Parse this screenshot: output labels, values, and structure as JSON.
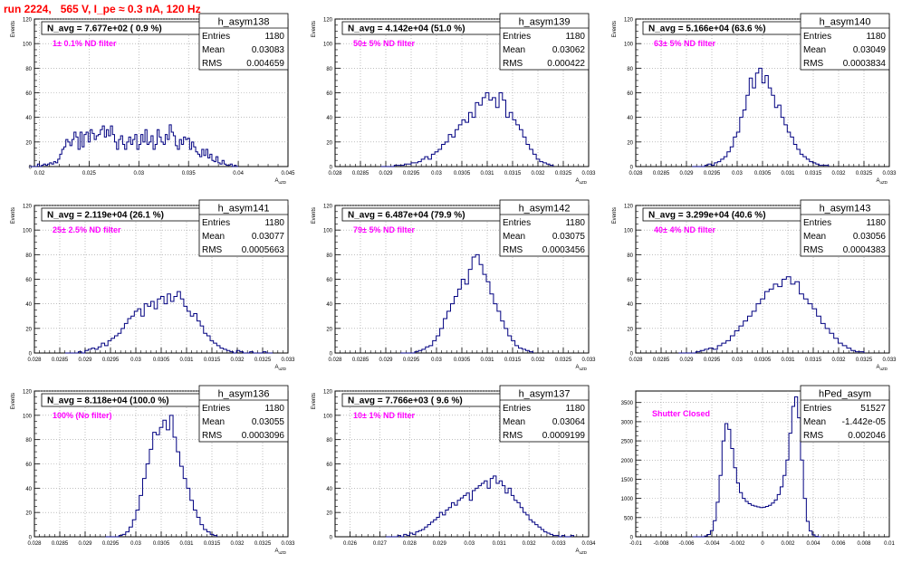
{
  "header": {
    "title": "run 2224,   565 V, I_pe ≈ 0.3 nA, 120 Hz"
  },
  "chart_data": [
    {
      "type": "histogram",
      "title": "N_avg = 7.677e+02 ( 0.9 %)",
      "annotation": "1± 0.1% ND filter",
      "ylabel": "Events",
      "xlabel": "A_uZD",
      "xlim": [
        0.0195,
        0.045
      ],
      "ylim": [
        0,
        120
      ],
      "x_ticks": [
        "0.02",
        "0.025",
        "0.03",
        "0.035",
        "0.04",
        "0.045"
      ],
      "y_ticks": [
        "0",
        "20",
        "40",
        "60",
        "80",
        "100",
        "120"
      ],
      "stats": {
        "name": "h_asym138",
        "rows": [
          [
            "Entries",
            "1180"
          ],
          [
            "Mean",
            "0.03083"
          ],
          [
            "RMS",
            "0.004659"
          ]
        ]
      },
      "bin_edges": [
        0.0196,
        0.04
      ],
      "values": [
        0,
        2,
        0,
        1,
        2,
        1,
        2,
        3,
        2,
        4,
        3,
        6,
        10,
        14,
        16,
        22,
        20,
        17,
        22,
        28,
        24,
        14,
        28,
        16,
        26,
        28,
        20,
        30,
        27,
        22,
        25,
        26,
        30,
        33,
        24,
        30,
        25,
        33,
        26,
        20,
        14,
        22,
        25,
        18,
        14,
        20,
        24,
        18,
        22,
        26,
        14,
        18,
        26,
        20,
        30,
        18,
        20,
        25,
        14,
        18,
        30,
        24,
        20,
        18,
        26,
        22,
        34,
        28,
        25,
        17,
        14,
        22,
        18,
        24,
        22,
        23,
        14,
        20,
        16,
        12,
        10,
        8,
        14,
        9,
        14,
        7,
        10,
        5,
        4,
        8,
        3,
        2,
        5,
        2,
        1,
        1,
        2,
        0,
        1,
        0
      ]
    },
    {
      "type": "histogram",
      "title": "N_avg = 4.142e+04 (51.0 %)",
      "annotation": "50± 5% ND filter",
      "ylabel": "Events",
      "xlabel": "A_uZD",
      "xlim": [
        0.028,
        0.033
      ],
      "ylim": [
        0,
        120
      ],
      "x_ticks": [
        "0.028",
        "0.0285",
        "0.029",
        "0.0295",
        "0.03",
        "0.0305",
        "0.031",
        "0.0315",
        "0.032",
        "0.0325",
        "0.033"
      ],
      "y_ticks": [
        "0",
        "20",
        "40",
        "60",
        "80",
        "100",
        "120"
      ],
      "stats": {
        "name": "h_asym139",
        "rows": [
          [
            "Entries",
            "1180"
          ],
          [
            "Mean",
            "0.03062"
          ],
          [
            "RMS",
            "0.000422"
          ]
        ]
      },
      "bin_edges": [
        0.0291,
        0.0323
      ],
      "values": [
        0,
        1,
        1,
        1,
        2,
        2,
        3,
        3,
        4,
        6,
        8,
        6,
        10,
        12,
        14,
        18,
        20,
        26,
        24,
        30,
        34,
        38,
        36,
        44,
        40,
        52,
        50,
        56,
        60,
        54,
        56,
        48,
        60,
        54,
        40,
        44,
        38,
        34,
        30,
        24,
        18,
        14,
        10,
        6,
        4,
        3,
        2,
        1
      ]
    },
    {
      "type": "histogram",
      "title": "N_avg = 5.166e+04 (63.6 %)",
      "annotation": "63± 5% ND filter",
      "ylabel": "Events",
      "xlabel": "A_uZD",
      "xlim": [
        0.028,
        0.033
      ],
      "ylim": [
        0,
        120
      ],
      "x_ticks": [
        "0.028",
        "0.0285",
        "0.029",
        "0.0295",
        "0.03",
        "0.0305",
        "0.031",
        "0.0315",
        "0.032",
        "0.0325",
        "0.033"
      ],
      "y_ticks": [
        "0",
        "20",
        "40",
        "60",
        "80",
        "100",
        "120"
      ],
      "stats": {
        "name": "h_asym140",
        "rows": [
          [
            "Entries",
            "1180"
          ],
          [
            "Mean",
            "0.03049"
          ],
          [
            "RMS",
            "0.0003834"
          ]
        ]
      },
      "bin_edges": [
        0.0293,
        0.0318
      ],
      "values": [
        0,
        1,
        2,
        1,
        3,
        4,
        6,
        8,
        12,
        16,
        24,
        28,
        40,
        46,
        58,
        72,
        64,
        76,
        80,
        68,
        74,
        64,
        58,
        48,
        50,
        40,
        34,
        28,
        24,
        18,
        14,
        10,
        8,
        6,
        4,
        3,
        2,
        1,
        1,
        1
      ]
    },
    {
      "type": "histogram",
      "title": "N_avg = 2.119e+04 (26.1 %)",
      "annotation": "25± 2.5% ND filter",
      "ylabel": "Events",
      "xlabel": "A_uZD",
      "xlim": [
        0.028,
        0.033
      ],
      "ylim": [
        0,
        120
      ],
      "x_ticks": [
        "0.028",
        "0.0285",
        "0.029",
        "0.0295",
        "0.03",
        "0.0305",
        "0.031",
        "0.0315",
        "0.032",
        "0.0325",
        "0.033"
      ],
      "y_ticks": [
        "0",
        "20",
        "40",
        "60",
        "80",
        "100",
        "120"
      ],
      "stats": {
        "name": "h_asym141",
        "rows": [
          [
            "Entries",
            "1180"
          ],
          [
            "Mean",
            "0.03077"
          ],
          [
            "RMS",
            "0.0005663"
          ]
        ]
      },
      "bin_edges": [
        0.0288,
        0.0327
      ],
      "values": [
        0,
        1,
        0,
        2,
        3,
        4,
        3,
        5,
        8,
        6,
        10,
        12,
        14,
        16,
        20,
        24,
        28,
        30,
        34,
        36,
        30,
        40,
        38,
        42,
        36,
        44,
        46,
        40,
        48,
        42,
        46,
        50,
        44,
        38,
        34,
        30,
        32,
        26,
        22,
        16,
        14,
        10,
        8,
        6,
        4,
        3,
        2,
        1,
        0,
        2,
        1,
        0,
        0,
        1,
        0,
        0,
        0,
        1,
        0,
        0
      ]
    },
    {
      "type": "histogram",
      "title": "N_avg = 6.487e+04 (79.9 %)",
      "annotation": "79± 5% ND filter",
      "ylabel": "Events",
      "xlabel": "A_uZD",
      "xlim": [
        0.028,
        0.033
      ],
      "ylim": [
        0,
        120
      ],
      "x_ticks": [
        "0.028",
        "0.0285",
        "0.029",
        "0.0295",
        "0.03",
        "0.0305",
        "0.031",
        "0.0315",
        "0.032",
        "0.0325",
        "0.033"
      ],
      "y_ticks": [
        "0",
        "20",
        "40",
        "60",
        "80",
        "100",
        "120"
      ],
      "stats": {
        "name": "h_asym142",
        "rows": [
          [
            "Entries",
            "1180"
          ],
          [
            "Mean",
            "0.03075"
          ],
          [
            "RMS",
            "0.0003456"
          ]
        ]
      },
      "bin_edges": [
        0.0295,
        0.0319
      ],
      "values": [
        0,
        1,
        2,
        3,
        5,
        6,
        10,
        14,
        20,
        28,
        34,
        40,
        46,
        52,
        60,
        56,
        68,
        78,
        80,
        72,
        64,
        58,
        48,
        40,
        34,
        26,
        20,
        14,
        10,
        6,
        4,
        3,
        2,
        1
      ]
    },
    {
      "type": "histogram",
      "title": "N_avg = 3.299e+04 (40.6 %)",
      "annotation": "40± 4% ND filter",
      "ylabel": "Events",
      "xlabel": "A_uZD",
      "xlim": [
        0.028,
        0.033
      ],
      "ylim": [
        0,
        120
      ],
      "x_ticks": [
        "0.028",
        "0.0285",
        "0.029",
        "0.0295",
        "0.03",
        "0.0305",
        "0.031",
        "0.0315",
        "0.032",
        "0.0325",
        "0.033"
      ],
      "y_ticks": [
        "0",
        "20",
        "40",
        "60",
        "80",
        "100",
        "120"
      ],
      "stats": {
        "name": "h_asym143",
        "rows": [
          [
            "Entries",
            "1180"
          ],
          [
            "Mean",
            "0.03056"
          ],
          [
            "RMS",
            "0.0004383"
          ]
        ]
      },
      "bin_edges": [
        0.0291,
        0.0325
      ],
      "values": [
        0,
        1,
        2,
        3,
        4,
        3,
        6,
        8,
        10,
        14,
        18,
        22,
        26,
        30,
        34,
        40,
        44,
        50,
        52,
        56,
        54,
        60,
        62,
        56,
        58,
        48,
        44,
        40,
        36,
        30,
        24,
        20,
        16,
        12,
        8,
        6,
        4,
        2,
        1,
        1
      ]
    },
    {
      "type": "histogram",
      "title": "N_avg = 8.118e+04 (100.0 %)",
      "annotation": "100% (No filter)",
      "ylabel": "Events",
      "xlabel": "A_uZD",
      "xlim": [
        0.028,
        0.033
      ],
      "ylim": [
        0,
        120
      ],
      "x_ticks": [
        "0.028",
        "0.0285",
        "0.029",
        "0.0295",
        "0.03",
        "0.0305",
        "0.031",
        "0.0315",
        "0.032",
        "0.0325",
        "0.033"
      ],
      "y_ticks": [
        "0",
        "20",
        "40",
        "60",
        "80",
        "100",
        "120"
      ],
      "stats": {
        "name": "h_asym136",
        "rows": [
          [
            "Entries",
            "1180"
          ],
          [
            "Mean",
            "0.03055"
          ],
          [
            "RMS",
            "0.0003096"
          ]
        ]
      },
      "bin_edges": [
        0.0296,
        0.0316
      ],
      "values": [
        0,
        1,
        2,
        4,
        8,
        14,
        22,
        34,
        48,
        60,
        72,
        86,
        84,
        90,
        96,
        88,
        100,
        82,
        70,
        58,
        48,
        40,
        30,
        22,
        16,
        10,
        6,
        4,
        2,
        1
      ]
    },
    {
      "type": "histogram",
      "title": "N_avg = 7.766e+03 ( 9.6 %)",
      "annotation": "10± 1% ND filter",
      "ylabel": "Events",
      "xlabel": "A_uZD",
      "xlim": [
        0.0255,
        0.034
      ],
      "ylim": [
        0,
        120
      ],
      "x_ticks": [
        "0.026",
        "0.027",
        "0.028",
        "0.029",
        "0.03",
        "0.031",
        "0.032",
        "0.033",
        "0.034"
      ],
      "y_ticks": [
        "0",
        "20",
        "40",
        "60",
        "80",
        "100",
        "120"
      ],
      "stats": {
        "name": "h_asym137",
        "rows": [
          [
            "Entries",
            "1180"
          ],
          [
            "Mean",
            "0.03064"
          ],
          [
            "RMS",
            "0.0009199"
          ]
        ]
      },
      "bin_edges": [
        0.0275,
        0.0335
      ],
      "values": [
        0,
        1,
        0,
        2,
        1,
        3,
        2,
        4,
        5,
        6,
        8,
        10,
        12,
        14,
        16,
        20,
        18,
        22,
        24,
        28,
        26,
        30,
        32,
        34,
        36,
        30,
        38,
        40,
        42,
        44,
        46,
        40,
        48,
        50,
        44,
        46,
        42,
        36,
        40,
        34,
        30,
        28,
        24,
        20,
        18,
        14,
        12,
        10,
        8,
        6,
        4,
        3,
        2,
        1,
        1,
        0,
        1,
        0,
        0,
        1
      ]
    },
    {
      "type": "histogram",
      "title": "",
      "annotation": "Shutter Closed",
      "ylabel": "",
      "xlabel": "",
      "xlim": [
        -0.01,
        0.01
      ],
      "ylim": [
        0,
        3800
      ],
      "x_ticks": [
        "-0.01",
        "-0.008",
        "-0.006",
        "-0.004",
        "-0.002",
        "0",
        "0.002",
        "0.004",
        "0.006",
        "0.008",
        "0.01"
      ],
      "y_ticks": [
        "0",
        "500",
        "1000",
        "1500",
        "2000",
        "2500",
        "3000",
        "3500"
      ],
      "stats": {
        "name": "hPed_asym",
        "rows": [
          [
            "Entries",
            "51527"
          ],
          [
            "Mean",
            "-1.442e-05"
          ],
          [
            "RMS",
            "0.002046"
          ]
        ]
      },
      "bin_edges": [
        -0.0048,
        0.0046
      ],
      "values": [
        0,
        20,
        60,
        160,
        420,
        900,
        1600,
        2500,
        2950,
        2800,
        2300,
        1800,
        1400,
        1150,
        1000,
        920,
        860,
        820,
        800,
        780,
        760,
        770,
        790,
        820,
        880,
        960,
        1100,
        1300,
        1600,
        2000,
        2700,
        3400,
        3650,
        3100,
        2000,
        1000,
        400,
        150,
        50,
        10,
        0
      ]
    }
  ]
}
